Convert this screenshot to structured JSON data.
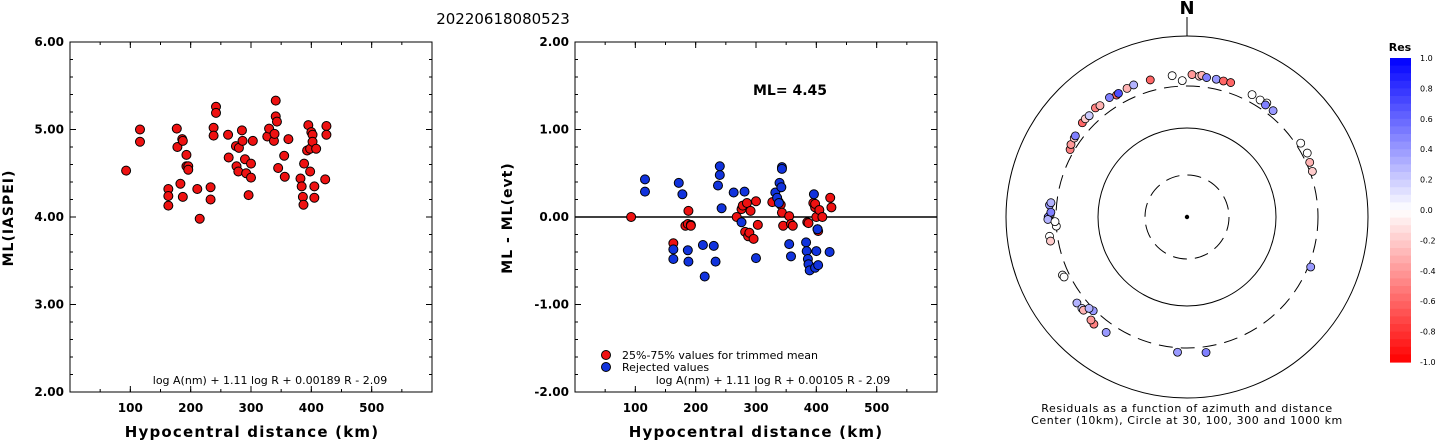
{
  "title": "20220618080523",
  "chart_data": [
    {
      "type": "scatter",
      "ylabel": "ML(IASPEI)",
      "xlabel": "Hypocentral distance (km)",
      "formula": "log A(nm) + 1.11 log R + 0.00189 R - 2.09",
      "xlim": [
        0,
        600
      ],
      "ylim": [
        2,
        6
      ],
      "x_ticks": [
        "100",
        "200",
        "300",
        "400",
        "500"
      ],
      "y_ticks": [
        "2.00",
        "3.00",
        "4.00",
        "5.00",
        "6.00"
      ],
      "points": [
        [
          93,
          4.53
        ],
        [
          116,
          5.0
        ],
        [
          116,
          4.86
        ],
        [
          163,
          4.32
        ],
        [
          163,
          4.24
        ],
        [
          163,
          4.13
        ],
        [
          177,
          5.01
        ],
        [
          178,
          4.8
        ],
        [
          183,
          4.38
        ],
        [
          186,
          4.89
        ],
        [
          187,
          4.87
        ],
        [
          187,
          4.23
        ],
        [
          193,
          4.71
        ],
        [
          193,
          4.58
        ],
        [
          196,
          4.58
        ],
        [
          196,
          4.54
        ],
        [
          211,
          4.32
        ],
        [
          215,
          3.98
        ],
        [
          233,
          4.34
        ],
        [
          233,
          4.2
        ],
        [
          238,
          5.02
        ],
        [
          238,
          4.93
        ],
        [
          242,
          5.26
        ],
        [
          242,
          5.19
        ],
        [
          262,
          4.94
        ],
        [
          263,
          4.68
        ],
        [
          275,
          4.81
        ],
        [
          276,
          4.58
        ],
        [
          279,
          4.52
        ],
        [
          280,
          4.79
        ],
        [
          285,
          4.99
        ],
        [
          286,
          4.87
        ],
        [
          290,
          4.66
        ],
        [
          292,
          4.5
        ],
        [
          296,
          4.25
        ],
        [
          300,
          4.61
        ],
        [
          300,
          4.45
        ],
        [
          303,
          4.87
        ],
        [
          327,
          4.92
        ],
        [
          330,
          5.01
        ],
        [
          338,
          4.87
        ],
        [
          339,
          4.95
        ],
        [
          341,
          5.33
        ],
        [
          341,
          5.15
        ],
        [
          343,
          5.09
        ],
        [
          345,
          4.56
        ],
        [
          355,
          4.7
        ],
        [
          356,
          4.46
        ],
        [
          362,
          4.89
        ],
        [
          382,
          4.44
        ],
        [
          384,
          4.35
        ],
        [
          386,
          4.23
        ],
        [
          387,
          4.14
        ],
        [
          388,
          4.61
        ],
        [
          393,
          4.76
        ],
        [
          395,
          5.05
        ],
        [
          398,
          4.78
        ],
        [
          398,
          4.52
        ],
        [
          400,
          4.97
        ],
        [
          402,
          4.94
        ],
        [
          402,
          4.86
        ],
        [
          405,
          4.35
        ],
        [
          405,
          4.22
        ],
        [
          408,
          4.78
        ],
        [
          423,
          4.43
        ],
        [
          425,
          5.04
        ],
        [
          425,
          4.94
        ]
      ]
    },
    {
      "type": "scatter",
      "ylabel": "ML - ML(evt)",
      "xlabel": "Hypocentral distance (km)",
      "annotation": "ML= 4.45",
      "formula": "log A(nm) + 1.11 log R + 0.00105 R - 2.09",
      "xlim": [
        0,
        600
      ],
      "ylim": [
        -2,
        2
      ],
      "x_ticks": [
        "100",
        "200",
        "300",
        "400",
        "500"
      ],
      "y_ticks": [
        "-2.00",
        "-1.00",
        "0.00",
        "1.00",
        "2.00"
      ],
      "legend": [
        "25%-75% values for trimmed mean",
        "Rejected values"
      ],
      "series": [
        {
          "name": "25%-75% values for trimmed mean",
          "points": [
            [
              93,
              0.0
            ],
            [
              163,
              -0.3
            ],
            [
              183,
              -0.1
            ],
            [
              187,
              -0.08
            ],
            [
              188,
              0.07
            ],
            [
              192,
              -0.09
            ],
            [
              192,
              -0.1
            ],
            [
              268,
              0.0
            ],
            [
              276,
              0.09
            ],
            [
              278,
              0.13
            ],
            [
              282,
              -0.17
            ],
            [
              285,
              0.16
            ],
            [
              287,
              -0.22
            ],
            [
              289,
              -0.18
            ],
            [
              291,
              0.07
            ],
            [
              296,
              -0.25
            ],
            [
              300,
              0.18
            ],
            [
              303,
              -0.09
            ],
            [
              327,
              0.17
            ],
            [
              338,
              0.17
            ],
            [
              341,
              0.14
            ],
            [
              343,
              0.05
            ],
            [
              345,
              -0.1
            ],
            [
              355,
              0.01
            ],
            [
              358,
              -0.08
            ],
            [
              361,
              -0.1
            ],
            [
              385,
              -0.06
            ],
            [
              387,
              -0.07
            ],
            [
              395,
              0.16
            ],
            [
              398,
              0.11
            ],
            [
              398,
              0.15
            ],
            [
              400,
              0.0
            ],
            [
              402,
              -0.14
            ],
            [
              403,
              -0.16
            ],
            [
              405,
              0.08
            ],
            [
              410,
              0.0
            ],
            [
              423,
              0.22
            ],
            [
              425,
              0.11
            ]
          ]
        },
        {
          "name": "Rejected values",
          "points": [
            [
              116,
              0.43
            ],
            [
              116,
              0.29
            ],
            [
              163,
              -0.48
            ],
            [
              163,
              -0.37
            ],
            [
              172,
              0.39
            ],
            [
              178,
              0.26
            ],
            [
              187,
              -0.38
            ],
            [
              188,
              -0.51
            ],
            [
              212,
              -0.32
            ],
            [
              215,
              -0.68
            ],
            [
              230,
              -0.33
            ],
            [
              233,
              -0.51
            ],
            [
              237,
              0.36
            ],
            [
              240,
              0.48
            ],
            [
              240,
              0.58
            ],
            [
              243,
              0.1
            ],
            [
              263,
              0.28
            ],
            [
              276,
              -0.06
            ],
            [
              281,
              0.29
            ],
            [
              300,
              -0.47
            ],
            [
              332,
              0.28
            ],
            [
              335,
              0.22
            ],
            [
              338,
              0.16
            ],
            [
              339,
              0.39
            ],
            [
              342,
              0.34
            ],
            [
              343,
              0.57
            ],
            [
              343,
              0.55
            ],
            [
              355,
              -0.31
            ],
            [
              358,
              -0.45
            ],
            [
              383,
              -0.29
            ],
            [
              384,
              -0.39
            ],
            [
              386,
              -0.48
            ],
            [
              387,
              -0.54
            ],
            [
              389,
              -0.61
            ],
            [
              396,
              0.26
            ],
            [
              398,
              -0.58
            ],
            [
              400,
              -0.39
            ],
            [
              402,
              -0.14
            ],
            [
              403,
              -0.55
            ],
            [
              422,
              -0.4
            ]
          ]
        }
      ]
    },
    {
      "type": "scatter",
      "subtype": "polar",
      "north_label": "N",
      "caption": [
        "Residuals as a function of azimuth and distance",
        "Center (10km), Circle at 30, 100, 300 and 1000 km"
      ],
      "legend_title": "Res",
      "scale_labels": [
        "1.0",
        "0.8",
        "0.6",
        "0.4",
        "0.2",
        "0.0",
        "-0.2",
        "-0.4",
        "-0.6",
        "-0.8",
        "-1.0"
      ],
      "rings_km": [
        30,
        100,
        300,
        1000
      ],
      "points": [
        [
          330,
          380,
          -0.6
        ],
        [
          335,
          390,
          -0.3
        ],
        [
          338,
          395,
          0.3
        ],
        [
          300,
          330,
          -0.5
        ],
        [
          302,
          345,
          -0.4
        ],
        [
          305,
          352,
          -0.2
        ],
        [
          306,
          355,
          0.5
        ],
        [
          312,
          380,
          -0.6
        ],
        [
          314,
          385,
          -0.2
        ],
        [
          316,
          380,
          0.2
        ],
        [
          320,
          395,
          -0.5
        ],
        [
          322,
          385,
          -0.3
        ],
        [
          327,
          395,
          0.5
        ],
        [
          331,
          385,
          0.7
        ],
        [
          345,
          390,
          -0.6
        ],
        [
          354,
          392,
          0.0
        ],
        [
          358,
          342,
          0.0
        ],
        [
          2,
          396,
          -0.4
        ],
        [
          5,
          385,
          -0.2
        ],
        [
          6,
          395,
          -0.3
        ],
        [
          8,
          380,
          0.5
        ],
        [
          12,
          380,
          0.4
        ],
        [
          15,
          380,
          -0.6
        ],
        [
          18,
          385,
          -0.6
        ],
        [
          28,
          360,
          0.0
        ],
        [
          32,
          355,
          0.0
        ],
        [
          35,
          365,
          0.0
        ],
        [
          35,
          345,
          0.5
        ],
        [
          39,
          345,
          0.4
        ],
        [
          57,
          335,
          0.0
        ],
        [
          62,
          340,
          0.0
        ],
        [
          66,
          325,
          -0.3
        ],
        [
          70,
          318,
          -0.2
        ],
        [
          275,
          355,
          0.4
        ],
        [
          276,
          345,
          0.3
        ],
        [
          271,
          345,
          0.0
        ],
        [
          270,
          362,
          0.5
        ],
        [
          269,
          365,
          0.3
        ],
        [
          272,
          340,
          0.5
        ],
        [
          266,
          300,
          0.0
        ],
        [
          268,
          308,
          0.0
        ],
        [
          262,
          362,
          0.0
        ],
        [
          260,
          360,
          -0.2
        ],
        [
          245,
          350,
          0.0
        ],
        [
          244,
          345,
          0.0
        ],
        [
          232,
          370,
          0.3
        ],
        [
          229,
          366,
          0.2
        ],
        [
          221,
          390,
          -0.5
        ],
        [
          223,
          380,
          -0.4
        ],
        [
          228,
          366,
          -0.3
        ],
        [
          215,
          381,
          0.4
        ],
        [
          225,
          312,
          0.4
        ],
        [
          227,
          322,
          0.3
        ],
        [
          172,
          345,
          0.5
        ],
        [
          184,
          335,
          0.4
        ],
        [
          112,
          318,
          0.4
        ]
      ]
    }
  ]
}
